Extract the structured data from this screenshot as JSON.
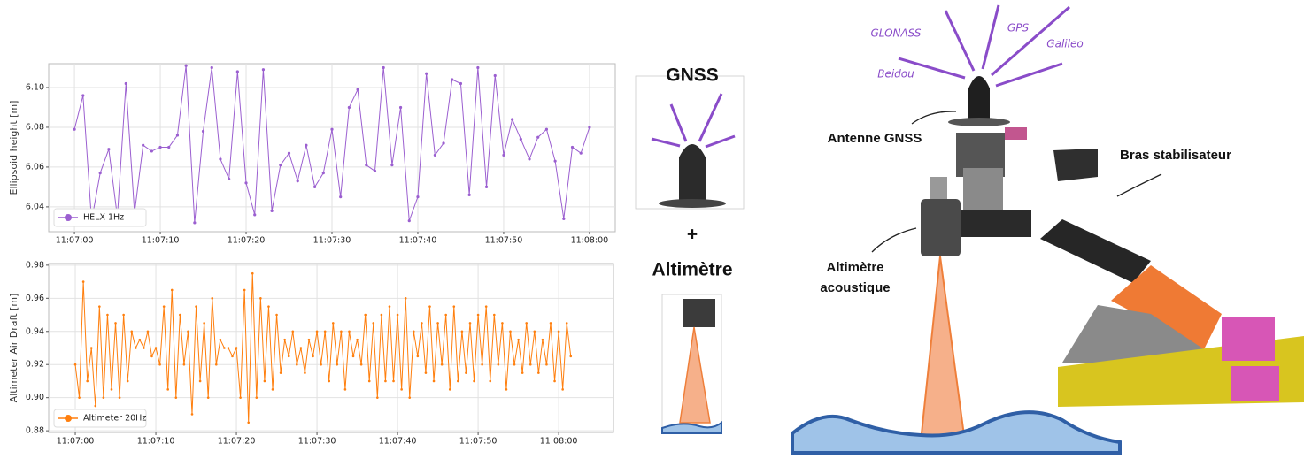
{
  "chart_data": [
    {
      "type": "line",
      "ylabel": "Ellipsoid height [m]",
      "x": [
        0,
        1,
        2,
        3,
        4,
        5,
        6,
        7,
        8,
        9,
        10,
        11,
        12,
        13,
        14,
        15,
        16,
        17,
        18,
        19,
        20,
        21,
        22,
        23,
        24,
        25,
        26,
        27,
        28,
        29,
        30,
        31,
        32,
        33,
        34,
        35,
        36,
        37,
        38,
        39,
        40,
        41,
        42,
        43,
        44,
        45,
        46,
        47,
        48,
        49,
        50,
        51,
        52,
        53,
        54,
        55,
        56,
        57,
        58,
        59,
        60
      ],
      "series": [
        {
          "name": "HELX 1Hz",
          "color": "#9b5fd0",
          "values": [
            6.079,
            6.096,
            6.033,
            6.057,
            6.069,
            6.035,
            6.102,
            6.037,
            6.071,
            6.068,
            6.07,
            6.07,
            6.076,
            6.111,
            6.032,
            6.078,
            6.11,
            6.064,
            6.054,
            6.108,
            6.052,
            6.036,
            6.109,
            6.038,
            6.061,
            6.067,
            6.053,
            6.071,
            6.05,
            6.057,
            6.079,
            6.045,
            6.09,
            6.099,
            6.061,
            6.058,
            6.11,
            6.061,
            6.09,
            6.033,
            6.045,
            6.107,
            6.066,
            6.072,
            6.104,
            6.102,
            6.046,
            6.11,
            6.05,
            6.106,
            6.066,
            6.084,
            6.074,
            6.064,
            6.075,
            6.079,
            6.063,
            6.034,
            6.07,
            6.067,
            6.08
          ]
        }
      ],
      "xlim": [
        -3,
        63
      ],
      "xticks": [
        {
          "value": 0,
          "label": "11:07:00"
        },
        {
          "value": 10,
          "label": "11:07:10"
        },
        {
          "value": 20,
          "label": "11:07:20"
        },
        {
          "value": 30,
          "label": "11:07:30"
        },
        {
          "value": 40,
          "label": "11:07:40"
        },
        {
          "value": 50,
          "label": "11:07:50"
        },
        {
          "value": 60,
          "label": "11:08:00"
        }
      ],
      "ylim": [
        6.0275,
        6.112
      ],
      "yticks": [
        6.04,
        6.06,
        6.08,
        {
          "value": 6.1,
          "label": "6.10"
        }
      ],
      "grid": true,
      "legend": "lower left"
    },
    {
      "type": "line",
      "ylabel": "Altimeter Air Draft [m]",
      "x": [
        0,
        0.5,
        1,
        1.5,
        2,
        2.5,
        3,
        3.5,
        4,
        4.5,
        5,
        5.5,
        6,
        6.5,
        7,
        7.5,
        8,
        8.5,
        9,
        9.5,
        10,
        10.5,
        11,
        11.5,
        12,
        12.5,
        13,
        13.5,
        14,
        14.5,
        15,
        15.5,
        16,
        16.5,
        17,
        17.5,
        18,
        18.5,
        19,
        19.5,
        20,
        20.5,
        21,
        21.5,
        22,
        22.5,
        23,
        23.5,
        24,
        24.5,
        25,
        25.5,
        26,
        26.5,
        27,
        27.5,
        28,
        28.5,
        29,
        29.5,
        30,
        30.5,
        31,
        31.5,
        32,
        32.5,
        33,
        33.5,
        34,
        34.5,
        35,
        35.5,
        36,
        36.5,
        37,
        37.5,
        38,
        38.5,
        39,
        39.5,
        40,
        40.5,
        41,
        41.5,
        42,
        42.5,
        43,
        43.5,
        44,
        44.5,
        45,
        45.5,
        46,
        46.5,
        47,
        47.5,
        48,
        48.5,
        49,
        49.5,
        50,
        50.5,
        51,
        51.5,
        52,
        52.5,
        53,
        53.5,
        54,
        54.5,
        55,
        55.5,
        56,
        56.5,
        57,
        57.5,
        58,
        58.5,
        59,
        59.5,
        60,
        60.5,
        61,
        61.5
      ],
      "series": [
        {
          "name": "Altimeter 20Hz",
          "color": "#ff7f0e",
          "values": [
            0.92,
            0.9,
            0.97,
            0.91,
            0.93,
            0.895,
            0.955,
            0.9,
            0.95,
            0.905,
            0.945,
            0.9,
            0.95,
            0.91,
            0.94,
            0.93,
            0.935,
            0.93,
            0.94,
            0.925,
            0.93,
            0.92,
            0.955,
            0.905,
            0.965,
            0.9,
            0.95,
            0.92,
            0.94,
            0.89,
            0.955,
            0.91,
            0.945,
            0.9,
            0.96,
            0.92,
            0.935,
            0.93,
            0.93,
            0.925,
            0.93,
            0.9,
            0.965,
            0.885,
            0.975,
            0.9,
            0.96,
            0.91,
            0.955,
            0.905,
            0.95,
            0.915,
            0.935,
            0.925,
            0.94,
            0.92,
            0.93,
            0.915,
            0.935,
            0.925,
            0.94,
            0.92,
            0.94,
            0.91,
            0.945,
            0.92,
            0.94,
            0.905,
            0.94,
            0.925,
            0.935,
            0.92,
            0.95,
            0.91,
            0.945,
            0.9,
            0.95,
            0.91,
            0.955,
            0.91,
            0.95,
            0.905,
            0.96,
            0.9,
            0.94,
            0.925,
            0.945,
            0.915,
            0.955,
            0.91,
            0.945,
            0.92,
            0.95,
            0.905,
            0.955,
            0.91,
            0.94,
            0.915,
            0.945,
            0.91,
            0.95,
            0.92,
            0.955,
            0.91,
            0.95,
            0.92,
            0.945,
            0.905,
            0.94,
            0.92,
            0.935,
            0.915,
            0.945,
            0.92,
            0.94,
            0.915,
            0.935,
            0.92,
            0.945,
            0.91,
            0.94,
            0.905,
            0.945,
            0.925
          ]
        }
      ],
      "xlim": [
        -3.3,
        66.8
      ],
      "xticks": [
        {
          "value": 0,
          "label": "11:07:00"
        },
        {
          "value": 10,
          "label": "11:07:10"
        },
        {
          "value": 20,
          "label": "11:07:20"
        },
        {
          "value": 30,
          "label": "11:07:30"
        },
        {
          "value": 40,
          "label": "11:07:40"
        },
        {
          "value": 50,
          "label": "11:07:50"
        },
        {
          "value": 60,
          "label": "11:08:00"
        }
      ],
      "ylim": [
        0.879,
        0.981
      ],
      "yticks": [
        0.88,
        {
          "value": 0.9,
          "label": "0.90"
        },
        0.92,
        0.94,
        0.96,
        0.98
      ],
      "grid": true,
      "legend": "lower left"
    }
  ],
  "illustration": {
    "gnss_title": "GNSS",
    "plus": "+",
    "altimeter_title": "Altimètre",
    "satellites": [
      "GLONASS",
      "GPS",
      "Galileo",
      "Beidou"
    ],
    "labels": {
      "antenna": "Antenne GNSS",
      "arm": "Bras stabilisateur",
      "altimeter": [
        "Altimètre",
        "acoustique"
      ]
    }
  }
}
